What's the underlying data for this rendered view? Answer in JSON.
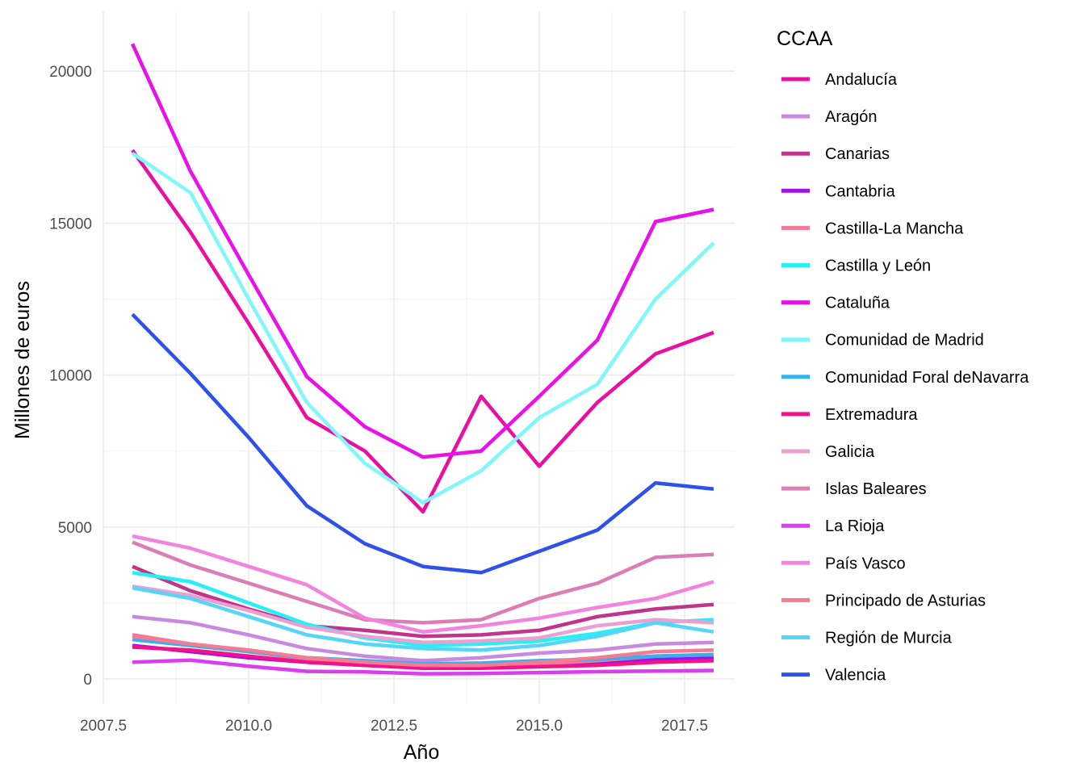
{
  "chart_data": {
    "type": "line",
    "xlabel": "Año",
    "ylabel": "Millones de euros",
    "xlim": [
      2007.5,
      2018.3
    ],
    "ylim": [
      -800,
      22000
    ],
    "x_ticks": [
      2007.5,
      2010.0,
      2012.5,
      2015.0,
      2017.5
    ],
    "x_tick_labels": [
      "2007.5",
      "2010.0",
      "2012.5",
      "2015.0",
      "2017.5"
    ],
    "y_ticks": [
      0,
      5000,
      10000,
      15000,
      20000
    ],
    "y_tick_labels": [
      "0",
      "5000",
      "10000",
      "15000",
      "20000"
    ],
    "grid": true,
    "legend": {
      "title": "CCAA",
      "position": "right"
    },
    "x": [
      2008,
      2009,
      2010,
      2011,
      2012,
      2013,
      2014,
      2015,
      2016,
      2017,
      2018
    ],
    "series": [
      {
        "name": "Andalucía",
        "color": "#ea0fa0",
        "values": [
          17400,
          14700,
          11700,
          8600,
          7500,
          5500,
          9300,
          7000,
          9100,
          10700,
          11400
        ]
      },
      {
        "name": "Aragón",
        "color": "#c78adf",
        "values": [
          2050,
          1850,
          1450,
          1000,
          750,
          600,
          700,
          850,
          950,
          1150,
          1200
        ]
      },
      {
        "name": "Canarias",
        "color": "#c1348c",
        "values": [
          3700,
          2900,
          2300,
          1750,
          1600,
          1400,
          1450,
          1600,
          2050,
          2300,
          2450
        ]
      },
      {
        "name": "Cantabria",
        "color": "#a011e8",
        "values": [
          1100,
          900,
          700,
          550,
          450,
          380,
          400,
          450,
          500,
          650,
          680
        ]
      },
      {
        "name": "Castilla-La Mancha",
        "color": "#f27a96",
        "values": [
          1450,
          1150,
          900,
          650,
          500,
          350,
          400,
          500,
          600,
          750,
          800
        ]
      },
      {
        "name": "Castilla y León",
        "color": "#26f0f5",
        "values": [
          3500,
          3200,
          2500,
          1800,
          1350,
          1100,
          1150,
          1250,
          1500,
          1850,
          1950
        ]
      },
      {
        "name": "Cataluña",
        "color": "#ea10ea",
        "values": [
          20900,
          16700,
          13300,
          9950,
          8300,
          7300,
          7500,
          9300,
          11150,
          15050,
          15450
        ]
      },
      {
        "name": "Comunidad de Madrid",
        "color": "#80f8fa",
        "values": [
          17300,
          16000,
          12500,
          9100,
          7100,
          5800,
          6850,
          8600,
          9700,
          12500,
          14350
        ]
      },
      {
        "name": "Comunidad Foral  deNavarra",
        "color": "#35b0f0",
        "values": [
          1300,
          1100,
          900,
          700,
          600,
          500,
          520,
          600,
          650,
          750,
          800
        ]
      },
      {
        "name": "Extremadura",
        "color": "#f2138a",
        "values": [
          1050,
          950,
          750,
          550,
          450,
          350,
          350,
          400,
          450,
          550,
          600
        ]
      },
      {
        "name": "Galicia",
        "color": "#eaa0d0",
        "values": [
          3050,
          2750,
          2250,
          1700,
          1400,
          1200,
          1250,
          1350,
          1750,
          1950,
          1850
        ]
      },
      {
        "name": "Islas Baleares",
        "color": "#dc7eb6",
        "values": [
          4500,
          3750,
          3150,
          2550,
          1950,
          1850,
          1950,
          2650,
          3150,
          4000,
          4100
        ]
      },
      {
        "name": "La Rioja",
        "color": "#db3cf0",
        "values": [
          550,
          620,
          420,
          250,
          230,
          170,
          180,
          210,
          240,
          260,
          280
        ]
      },
      {
        "name": "País Vasco",
        "color": "#f084de",
        "values": [
          4700,
          4300,
          3700,
          3100,
          2000,
          1550,
          1750,
          2000,
          2350,
          2650,
          3200
        ]
      },
      {
        "name": "Principado de Asturias",
        "color": "#f57b93",
        "values": [
          1400,
          1150,
          950,
          700,
          550,
          450,
          450,
          550,
          700,
          900,
          950
        ]
      },
      {
        "name": "Región de Murcia",
        "color": "#55d6f6",
        "values": [
          3000,
          2650,
          2050,
          1450,
          1150,
          1000,
          950,
          1100,
          1400,
          1850,
          1550
        ]
      },
      {
        "name": "Valencia",
        "color": "#2e51ec",
        "values": [
          12000,
          10050,
          7950,
          5700,
          4450,
          3700,
          3500,
          4200,
          4900,
          6450,
          6250
        ]
      }
    ]
  }
}
